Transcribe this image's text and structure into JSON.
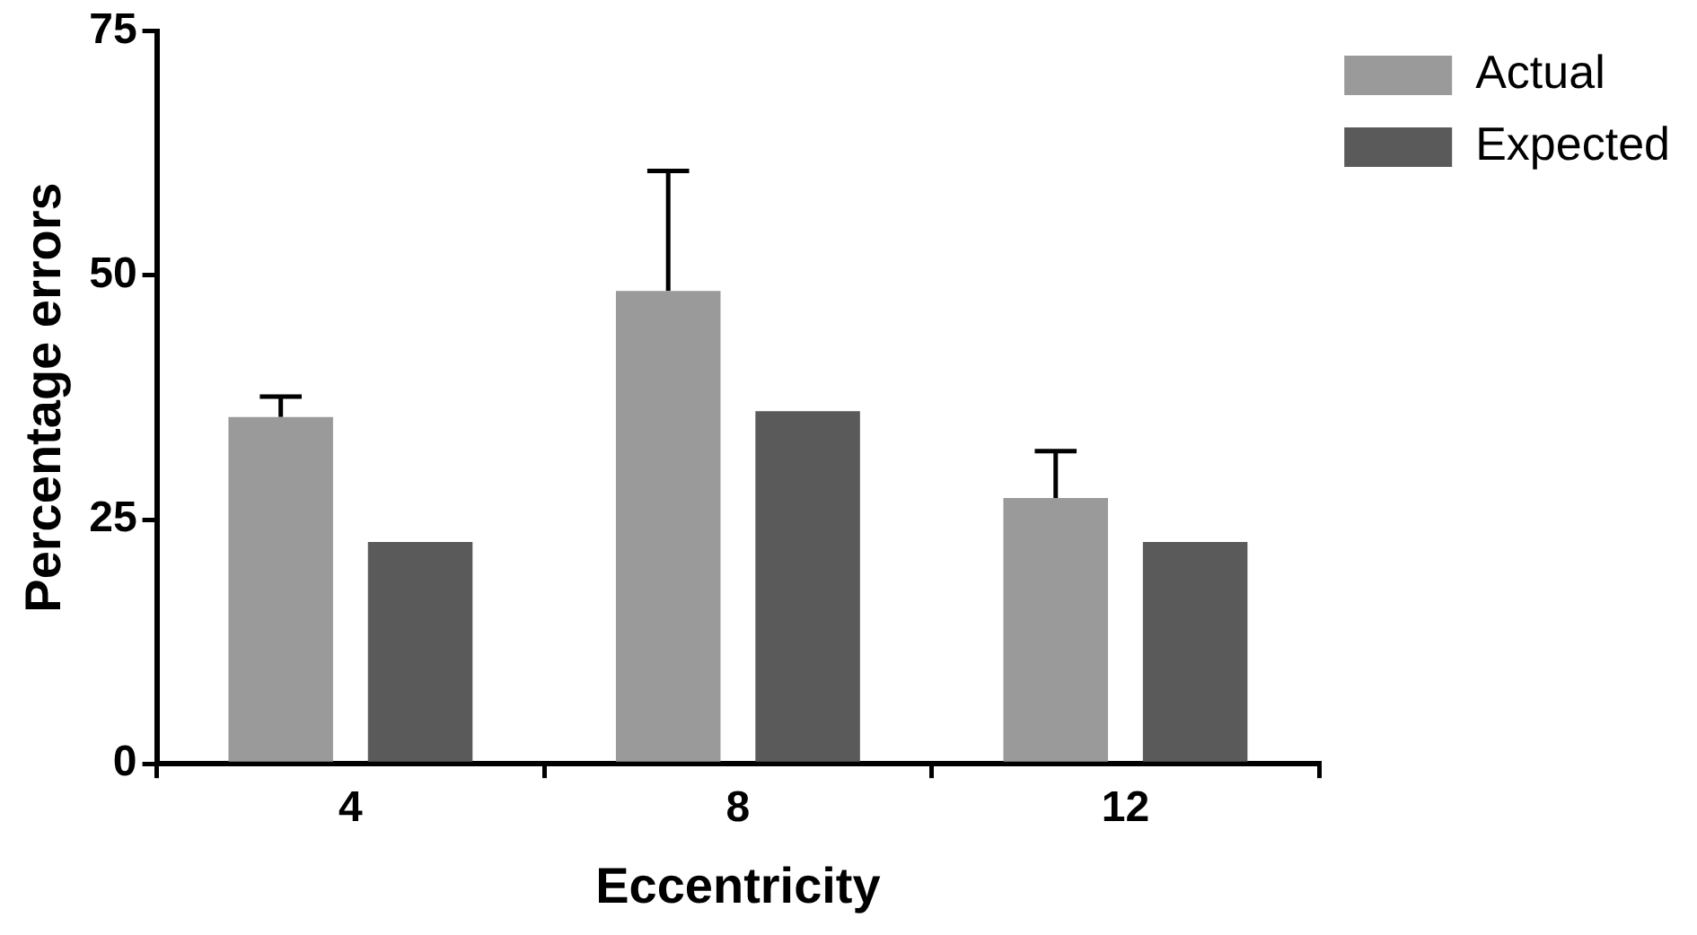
{
  "chart_data": {
    "type": "bar",
    "xlabel": "Eccentricity",
    "ylabel": "Percentage errors",
    "categories": [
      "4",
      "8",
      "12"
    ],
    "series": [
      {
        "name": "Actual",
        "color": "#9a9a9a",
        "values": [
          35.5,
          48.4,
          27.2
        ],
        "errors": [
          [
            35.5,
            37.6
          ],
          [
            48.4,
            60.7
          ],
          [
            27.2,
            32.0
          ]
        ]
      },
      {
        "name": "Expected",
        "color": "#5a5a5a",
        "values": [
          22.7,
          36.1,
          22.7
        ]
      }
    ],
    "ylim": [
      0,
      75
    ],
    "yticks": [
      0,
      25,
      50,
      75
    ],
    "grid": false,
    "legend": "top right"
  }
}
